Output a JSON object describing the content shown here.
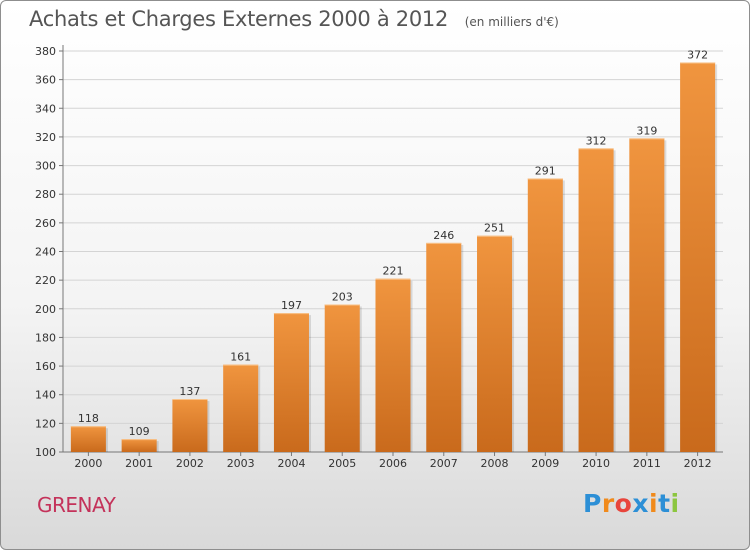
{
  "header": {
    "title": "Achats et Charges Externes 2000 à 2012",
    "subtitle": "(en milliers d'€)"
  },
  "footer": {
    "commune": "GRENAY",
    "logo_text": "Proxiti",
    "logo_colors": [
      "#2c8fd6",
      "#f08a1c",
      "#e8453c",
      "#2c8fd6",
      "#f08a1c",
      "#2c8fd6",
      "#8cc63f"
    ]
  },
  "chart_data": {
    "type": "bar",
    "title": "Achats et Charges Externes 2000 à 2012",
    "subtitle": "(en milliers d'€)",
    "xlabel": "",
    "ylabel": "",
    "categories": [
      "2000",
      "2001",
      "2002",
      "2003",
      "2004",
      "2005",
      "2006",
      "2007",
      "2008",
      "2009",
      "2010",
      "2011",
      "2012"
    ],
    "values": [
      118,
      109,
      137,
      161,
      197,
      203,
      221,
      246,
      251,
      291,
      312,
      319,
      372
    ],
    "ylim": [
      100,
      380
    ],
    "yticks": [
      100,
      120,
      140,
      160,
      180,
      200,
      220,
      240,
      260,
      280,
      300,
      320,
      340,
      360,
      380
    ],
    "grid": true,
    "bar_color": "#f0953f",
    "bar_color_dark": "#c96a1c"
  }
}
